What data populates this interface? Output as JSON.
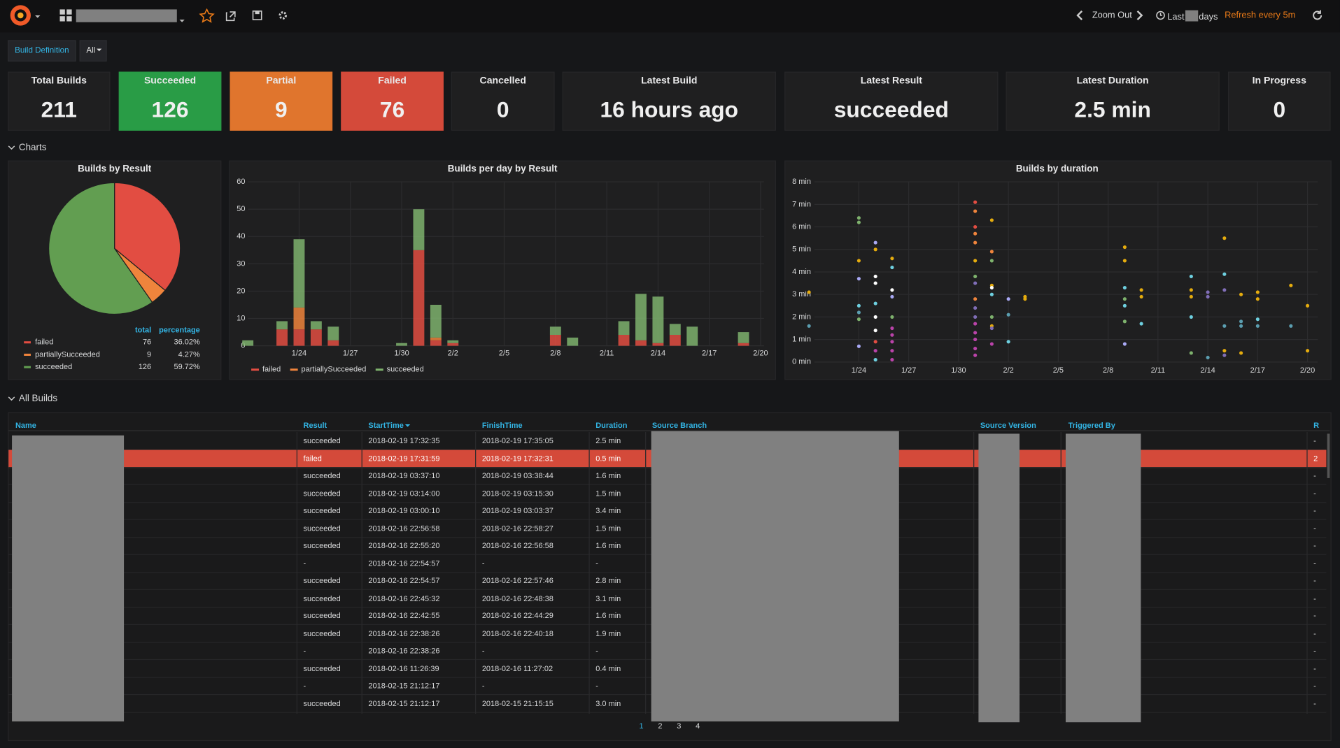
{
  "nav": {
    "zoom_out": "Zoom Out",
    "range_prefix": "Last",
    "range_suffix": "days",
    "refresh": "Refresh every 5m"
  },
  "variables": {
    "label": "Build Definition",
    "value": "All"
  },
  "stats": [
    {
      "title": "Total Builds",
      "value": 211
    },
    {
      "title": "Succeeded",
      "value": 126,
      "color": "#299c46"
    },
    {
      "title": "Partial",
      "value": 9,
      "color": "#e0752d"
    },
    {
      "title": "Failed",
      "value": 76,
      "color": "#d44a3a"
    },
    {
      "title": "Cancelled",
      "value": 0
    },
    {
      "title": "Latest Build",
      "value": "16 hours ago"
    },
    {
      "title": "Latest Result",
      "value": "succeeded"
    },
    {
      "title": "Latest Duration",
      "value": "2.5 min"
    },
    {
      "title": "In Progress",
      "value": 0
    }
  ],
  "sections": [
    "Charts",
    "All Builds"
  ],
  "pie_chart": {
    "type": "pie",
    "title": "Builds by Result",
    "categories": [
      "failed",
      "partiallySucceeded",
      "succeeded"
    ],
    "values": [
      76,
      9,
      126
    ],
    "colors": [
      "#e24d42",
      "#ef843c",
      "#629e51"
    ],
    "legend_headers": [
      "total",
      "percentage"
    ],
    "percentage_labels": [
      "36.02%",
      "4.27%",
      "59.72%"
    ]
  },
  "bar_chart": {
    "type": "bar",
    "stacked": true,
    "title": "Builds per day by Result",
    "categories": [
      null,
      null,
      null,
      "1/24",
      null,
      null,
      "1/27",
      null,
      null,
      "1/30",
      null,
      null,
      "2/2",
      null,
      null,
      "2/5",
      null,
      null,
      "2/8",
      null,
      null,
      "2/11",
      null,
      null,
      "2/14",
      null,
      null,
      "2/17",
      null,
      null,
      "2/20"
    ],
    "series": [
      {
        "name": "failed",
        "color": "#e24d42",
        "values": [
          0,
          0,
          6,
          6,
          6,
          2,
          0,
          0,
          0,
          0,
          35,
          2,
          1,
          0,
          0,
          0,
          0,
          0,
          4,
          0,
          0,
          0,
          4,
          2,
          1,
          4,
          0,
          0,
          0,
          1,
          0
        ]
      },
      {
        "name": "partiallySucceeded",
        "color": "#ef843c",
        "values": [
          0,
          0,
          0,
          8,
          0,
          0,
          0,
          0,
          0,
          0,
          0,
          1,
          0,
          0,
          0,
          0,
          0,
          0,
          0,
          0,
          0,
          0,
          0,
          0,
          0,
          0,
          0,
          0,
          0,
          0,
          0
        ]
      },
      {
        "name": "succeeded",
        "color": "#7eb26d",
        "values": [
          2,
          0,
          3,
          25,
          3,
          5,
          0,
          0,
          0,
          1,
          15,
          12,
          1,
          0,
          0,
          0,
          0,
          0,
          3,
          3,
          0,
          0,
          5,
          17,
          17,
          4,
          7,
          0,
          0,
          4,
          0
        ]
      }
    ],
    "ylim": [
      0,
      60
    ],
    "yticks": [
      0,
      10,
      20,
      30,
      40,
      50,
      60
    ],
    "grid": true
  },
  "scatter_chart": {
    "type": "scatter",
    "title": "Builds by duration",
    "xticks": [
      "1/24",
      "1/27",
      "1/30",
      "2/2",
      "2/5",
      "2/8",
      "2/11",
      "2/14",
      "2/17",
      "2/20"
    ],
    "ylim": [
      0,
      8
    ],
    "yticks": [
      {
        "value": 0,
        "label": "0 min"
      },
      {
        "value": 1,
        "label": "1 min"
      },
      {
        "value": 2,
        "label": "2 min"
      },
      {
        "value": 3,
        "label": "3 min"
      },
      {
        "value": 4,
        "label": "4 min"
      },
      {
        "value": 5,
        "label": "5 min"
      },
      {
        "value": 6,
        "label": "6 min"
      },
      {
        "value": 7,
        "label": "7 min"
      },
      {
        "value": 8,
        "label": "8 min"
      }
    ],
    "grid": true,
    "series": [
      {
        "color": "#e5ac0e",
        "x": [
          "1/21",
          "1/24",
          "1/25",
          "1/26",
          "1/31",
          "2/1",
          "2/1",
          "2/1",
          "2/3",
          "2/3",
          "2/9",
          "2/9",
          "2/10",
          "2/10",
          "2/13",
          "2/13",
          "2/15",
          "2/15",
          "2/16",
          "2/16",
          "2/17",
          "2/17",
          "2/19",
          "2/20",
          "2/20"
        ],
        "values": [
          3.1,
          4.5,
          5.0,
          4.6,
          4.5,
          6.3,
          3.4,
          1.6,
          2.9,
          2.8,
          5.1,
          4.5,
          3.2,
          2.9,
          3.2,
          2.9,
          5.5,
          0.5,
          3.0,
          0.4,
          3.1,
          2.8,
          3.4,
          2.5,
          0.5
        ]
      },
      {
        "color": "#ef843c",
        "x": [
          "1/31",
          "1/31",
          "1/31",
          "2/1",
          "1/31"
        ],
        "values": [
          6.7,
          5.7,
          5.3,
          4.9,
          2.8
        ]
      },
      {
        "color": "#e24d42",
        "x": [
          "1/31",
          "1/31",
          "1/25"
        ],
        "values": [
          7.1,
          6.0,
          0.9
        ]
      },
      {
        "color": "#6ed0e0",
        "x": [
          "1/24",
          "1/25",
          "1/25",
          "1/26",
          "2/1",
          "2/2",
          "2/9",
          "2/9",
          "2/10",
          "2/13",
          "2/13",
          "2/15",
          "2/17"
        ],
        "values": [
          2.5,
          2.6,
          0.1,
          4.2,
          3.0,
          0.9,
          3.3,
          2.5,
          1.7,
          3.8,
          2.0,
          3.9,
          1.9
        ]
      },
      {
        "color": "#5b9eb0",
        "x": [
          "1/21",
          "1/24",
          "2/2",
          "2/14",
          "2/15",
          "2/16",
          "2/16",
          "2/17",
          "2/19"
        ],
        "values": [
          1.6,
          2.2,
          2.1,
          0.2,
          1.6,
          1.8,
          1.6,
          1.6,
          1.6
        ]
      },
      {
        "color": "#ffffff",
        "x": [
          "1/25",
          "1/25",
          "1/25",
          "1/25",
          "1/26",
          "2/1"
        ],
        "values": [
          3.8,
          3.5,
          2.0,
          1.4,
          3.2,
          3.3
        ]
      },
      {
        "color": "#a9a9f5",
        "x": [
          "1/24",
          "1/24",
          "1/25",
          "1/26",
          "2/2",
          "2/9"
        ],
        "values": [
          3.7,
          0.7,
          5.3,
          2.9,
          2.8,
          0.8
        ]
      },
      {
        "color": "#7eb26d",
        "x": [
          "1/24",
          "1/24",
          "1/24",
          "1/26",
          "1/31",
          "2/1",
          "2/1",
          "2/9",
          "2/9",
          "2/13"
        ],
        "values": [
          6.4,
          6.2,
          1.9,
          2.0,
          3.8,
          4.5,
          2.0,
          2.8,
          1.8,
          0.4
        ]
      },
      {
        "color": "#ba43a9",
        "x": [
          "1/25",
          "1/26",
          "1/26",
          "1/26",
          "1/26",
          "1/26",
          "1/31",
          "1/31",
          "1/31",
          "1/31",
          "1/31",
          "2/1"
        ],
        "values": [
          0.5,
          1.5,
          1.2,
          0.9,
          0.5,
          0.1,
          1.7,
          1.3,
          1.0,
          0.6,
          0.3,
          0.8
        ]
      },
      {
        "color": "#806eb7",
        "x": [
          "1/31",
          "1/31",
          "1/31",
          "2/1",
          "2/14",
          "2/14",
          "2/15",
          "2/15"
        ],
        "values": [
          3.5,
          2.4,
          2.0,
          1.5,
          3.1,
          2.9,
          3.2,
          0.3
        ]
      }
    ]
  },
  "table": {
    "columns": [
      "Name",
      "Result",
      "StartTime",
      "FinishTime",
      "Duration",
      "Source Branch",
      "Source Version",
      "Triggered By",
      "R"
    ],
    "rows": [
      [
        "succeeded",
        "2018-02-19 17:32:35",
        "2018-02-19 17:35:05",
        "2.5 min",
        "-"
      ],
      [
        "failed",
        "2018-02-19 17:31:59",
        "2018-02-19 17:32:31",
        "0.5 min",
        "2"
      ],
      [
        "succeeded",
        "2018-02-19 03:37:10",
        "2018-02-19 03:38:44",
        "1.6 min",
        "-"
      ],
      [
        "succeeded",
        "2018-02-19 03:14:00",
        "2018-02-19 03:15:30",
        "1.5 min",
        "-"
      ],
      [
        "succeeded",
        "2018-02-19 03:00:10",
        "2018-02-19 03:03:37",
        "3.4 min",
        "-"
      ],
      [
        "succeeded",
        "2018-02-16 22:56:58",
        "2018-02-16 22:58:27",
        "1.5 min",
        "-"
      ],
      [
        "succeeded",
        "2018-02-16 22:55:20",
        "2018-02-16 22:56:58",
        "1.6 min",
        "-"
      ],
      [
        "-",
        "2018-02-16 22:54:57",
        "-",
        "-",
        "-"
      ],
      [
        "succeeded",
        "2018-02-16 22:54:57",
        "2018-02-16 22:57:46",
        "2.8 min",
        "-"
      ],
      [
        "succeeded",
        "2018-02-16 22:45:32",
        "2018-02-16 22:48:38",
        "3.1 min",
        "-"
      ],
      [
        "succeeded",
        "2018-02-16 22:42:55",
        "2018-02-16 22:44:29",
        "1.6 min",
        "-"
      ],
      [
        "succeeded",
        "2018-02-16 22:38:26",
        "2018-02-16 22:40:18",
        "1.9 min",
        "-"
      ],
      [
        "-",
        "2018-02-16 22:38:26",
        "-",
        "-",
        "-"
      ],
      [
        "succeeded",
        "2018-02-16 11:26:39",
        "2018-02-16 11:27:02",
        "0.4 min",
        "-"
      ],
      [
        "-",
        "2018-02-15 21:12:17",
        "-",
        "-",
        "-"
      ],
      [
        "succeeded",
        "2018-02-15 21:12:17",
        "2018-02-15 21:15:15",
        "3.0 min",
        "-"
      ]
    ],
    "pagination": [
      1,
      2,
      3,
      4
    ]
  }
}
